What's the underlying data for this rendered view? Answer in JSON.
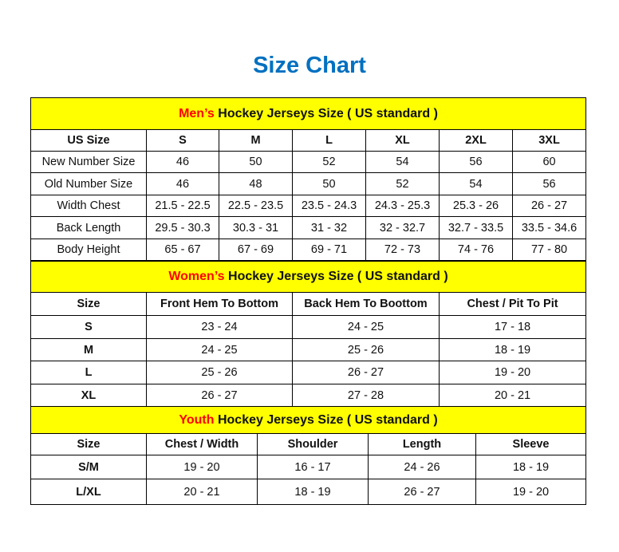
{
  "title": "Size Chart",
  "colors": {
    "title": "#0070C0",
    "section_bg": "#FFFF00",
    "highlight": "#FF0000"
  },
  "men": {
    "label_red": "Men’s",
    "label_rest": " Hockey Jerseys Size ( US standard )",
    "headers": [
      "US Size",
      "S",
      "M",
      "L",
      "XL",
      "2XL",
      "3XL"
    ],
    "rows": [
      [
        "New Number Size",
        "46",
        "50",
        "52",
        "54",
        "56",
        "60"
      ],
      [
        "Old Number Size",
        "46",
        "48",
        "50",
        "52",
        "54",
        "56"
      ],
      [
        "Width Chest",
        "21.5 - 22.5",
        "22.5 - 23.5",
        "23.5 - 24.3",
        "24.3 - 25.3",
        "25.3 - 26",
        "26 - 27"
      ],
      [
        "Back Length",
        "29.5 - 30.3",
        "30.3 - 31",
        "31 - 32",
        "32 - 32.7",
        "32.7 - 33.5",
        "33.5 - 34.6"
      ],
      [
        "Body Height",
        "65 - 67",
        "67 - 69",
        "69 - 71",
        "72 - 73",
        "74 - 76",
        "77 - 80"
      ]
    ]
  },
  "women": {
    "label_red": "Women’s",
    "label_rest": " Hockey Jerseys Size ( US standard )",
    "headers": [
      "Size",
      "Front Hem To Bottom",
      "Back Hem To Boottom",
      "Chest / Pit To Pit"
    ],
    "rows": [
      [
        "S",
        "23 - 24",
        "24 - 25",
        "17 - 18"
      ],
      [
        "M",
        "24 - 25",
        "25 - 26",
        "18 - 19"
      ],
      [
        "L",
        "25 - 26",
        "26 - 27",
        "19 - 20"
      ],
      [
        "XL",
        "26 - 27",
        "27 - 28",
        "20 - 21"
      ]
    ]
  },
  "youth": {
    "label_red": "Youth",
    "label_rest": " Hockey Jerseys Size ( US standard )",
    "headers": [
      "Size",
      "Chest / Width",
      "Shoulder",
      "Length",
      "Sleeve"
    ],
    "rows": [
      [
        "S/M",
        "19 - 20",
        "16 - 17",
        "24 - 26",
        "18 - 19"
      ],
      [
        "L/XL",
        "20 - 21",
        "18 - 19",
        "26 - 27",
        "19 - 20"
      ]
    ]
  }
}
